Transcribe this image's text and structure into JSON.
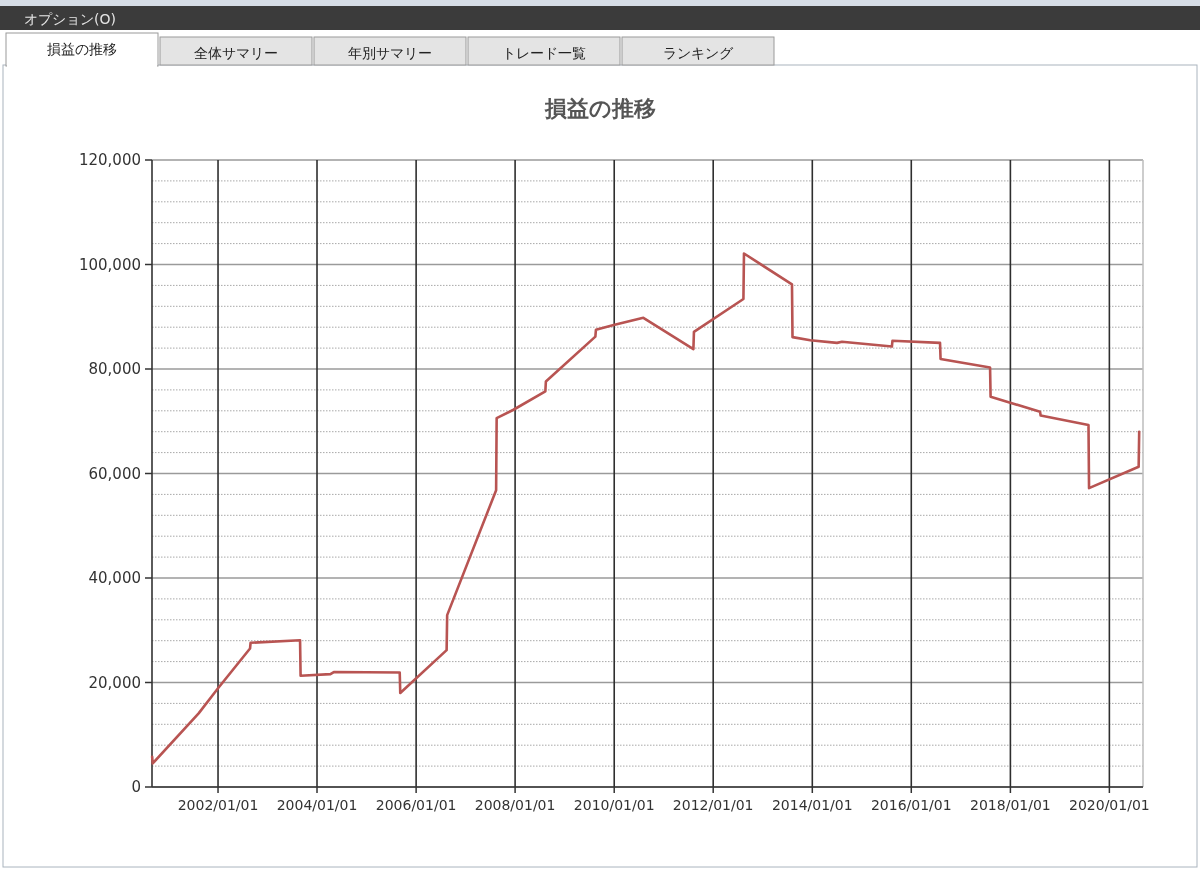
{
  "chart_data": {
    "type": "line",
    "title": "損益の推移",
    "annotations": [
      "オプション(O)",
      "損益の推移",
      "全体サマリー",
      "年別サマリー",
      "トレード一覧",
      "ランキング"
    ],
    "x": [
      "2000-09-02",
      "2000-09-06",
      "2001-08-11",
      "2002-01-01",
      "2002-08-25",
      "2002-08-29",
      "2003-08-29",
      "2003-09-02",
      "2004-04-09",
      "2004-05-04",
      "2005-09-02",
      "2005-09-06",
      "2006-08-14",
      "2006-08-18",
      "2007-08-14",
      "2007-08-18",
      "2007-12-20",
      "2008-08-11",
      "2008-08-15",
      "2009-08-15",
      "2009-08-19",
      "2009-12-28",
      "2010-08-04",
      "2011-08-08",
      "2011-08-12",
      "2012-08-11",
      "2012-08-15",
      "2013-08-04",
      "2013-08-08",
      "2013-12-17",
      "2014-07-02",
      "2014-08-08",
      "2015-08-11",
      "2015-08-15",
      "2016-07-31",
      "2016-08-04",
      "2017-08-04",
      "2017-08-08",
      "2018-08-08",
      "2018-08-12",
      "2019-07-31",
      "2019-08-04",
      "2020-08-04",
      "2020-08-08"
    ],
    "series": [
      {
        "color": "#b85452",
        "values": [
          5800,
          4500,
          14100,
          18900,
          26500,
          27600,
          28100,
          21300,
          21600,
          22000,
          21900,
          18000,
          26200,
          32900,
          56800,
          70600,
          72200,
          75700,
          77600,
          86200,
          87500,
          88400,
          89800,
          83800,
          87100,
          93400,
          102100,
          96200,
          86100,
          85500,
          85000,
          85200,
          84300,
          85400,
          85000,
          81900,
          80300,
          74700,
          71800,
          71100,
          69300,
          57200,
          61300,
          68000
        ]
      }
    ],
    "xlim": [
      "2000-09-01",
      "2020-09-05"
    ],
    "xticks": [
      {
        "value": "2002-01-01",
        "label": "2002/01/01"
      },
      {
        "value": "2004-01-01",
        "label": "2004/01/01"
      },
      {
        "value": "2006-01-01",
        "label": "2006/01/01"
      },
      {
        "value": "2008-01-01",
        "label": "2008/01/01"
      },
      {
        "value": "2010-01-01",
        "label": "2010/01/01"
      },
      {
        "value": "2012-01-01",
        "label": "2012/01/01"
      },
      {
        "value": "2014-01-01",
        "label": "2014/01/01"
      },
      {
        "value": "2016-01-01",
        "label": "2016/01/01"
      },
      {
        "value": "2018-01-01",
        "label": "2018/01/01"
      },
      {
        "value": "2020-01-01",
        "label": "2020/01/01"
      }
    ],
    "ylim": [
      0,
      120000
    ],
    "yticks": [
      0,
      {
        "value": 4000,
        "label": null
      },
      {
        "value": 8000,
        "label": null
      },
      {
        "value": 12000,
        "label": null
      },
      {
        "value": 16000,
        "label": null
      },
      {
        "value": 20000,
        "label": "20,000"
      },
      {
        "value": 24000,
        "label": null
      },
      {
        "value": 28000,
        "label": null
      },
      {
        "value": 32000,
        "label": null
      },
      {
        "value": 36000,
        "label": null
      },
      {
        "value": 40000,
        "label": "40,000"
      },
      {
        "value": 44000,
        "label": null
      },
      {
        "value": 48000,
        "label": null
      },
      {
        "value": 52000,
        "label": null
      },
      {
        "value": 56000,
        "label": null
      },
      {
        "value": 60000,
        "label": "60,000"
      },
      {
        "value": 64000,
        "label": null
      },
      {
        "value": 68000,
        "label": null
      },
      {
        "value": 72000,
        "label": null
      },
      {
        "value": 76000,
        "label": null
      },
      {
        "value": 80000,
        "label": "80,000"
      },
      {
        "value": 84000,
        "label": null
      },
      {
        "value": 88000,
        "label": null
      },
      {
        "value": 92000,
        "label": null
      },
      {
        "value": 96000,
        "label": null
      },
      {
        "value": 100000,
        "label": "100,000"
      },
      {
        "value": 104000,
        "label": null
      },
      {
        "value": 108000,
        "label": null
      },
      {
        "value": 112000,
        "label": null
      },
      {
        "value": 116000,
        "label": null
      },
      {
        "value": 120000,
        "label": "120,000"
      }
    ],
    "grid": true
  }
}
